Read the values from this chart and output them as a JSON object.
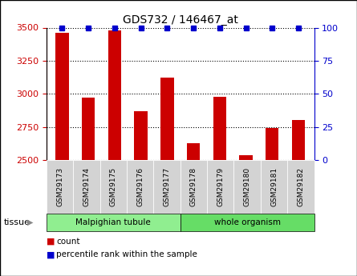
{
  "title": "GDS732 / 146467_at",
  "samples": [
    "GSM29173",
    "GSM29174",
    "GSM29175",
    "GSM29176",
    "GSM29177",
    "GSM29178",
    "GSM29179",
    "GSM29180",
    "GSM29181",
    "GSM29182"
  ],
  "counts": [
    3460,
    2970,
    3480,
    2870,
    3120,
    2630,
    2980,
    2535,
    2740,
    2800
  ],
  "percentiles": [
    100,
    100,
    100,
    100,
    100,
    100,
    100,
    100,
    100,
    100
  ],
  "ylim": [
    2500,
    3500
  ],
  "yticks": [
    2500,
    2750,
    3000,
    3250,
    3500
  ],
  "right_yticks": [
    0,
    25,
    50,
    75,
    100
  ],
  "right_ylim": [
    0,
    100
  ],
  "bar_color": "#cc0000",
  "dot_color": "#0000cc",
  "tissue_groups": [
    {
      "label": "Malpighian tubule",
      "start": 0,
      "end": 5,
      "color": "#90ee90"
    },
    {
      "label": "whole organism",
      "start": 5,
      "end": 10,
      "color": "#66dd66"
    }
  ],
  "tissue_label": "tissue",
  "legend_count_label": "count",
  "legend_pct_label": "percentile rank within the sample",
  "bar_width": 0.5,
  "tick_label_bg": "#d3d3d3"
}
